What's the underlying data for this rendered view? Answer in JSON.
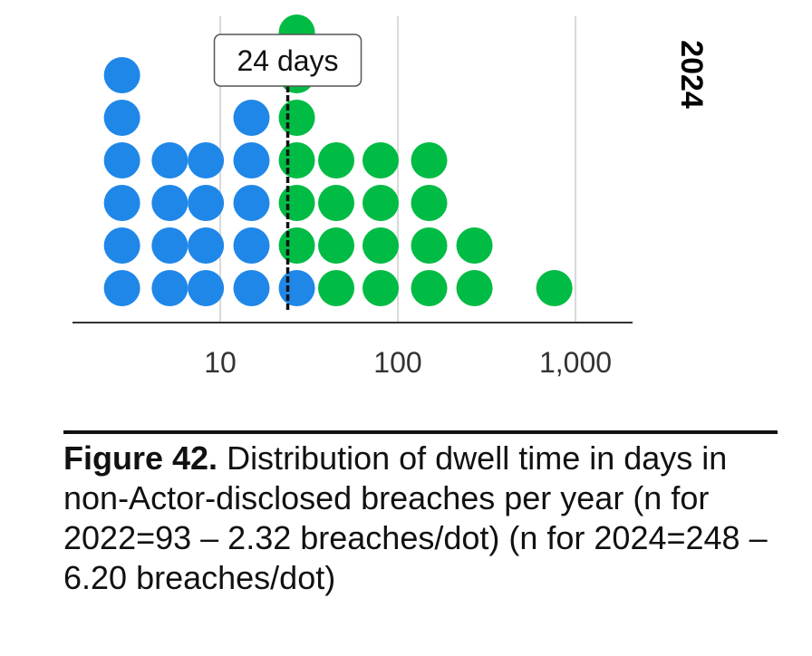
{
  "chart_data": {
    "type": "dot-histogram",
    "x_scale": "log",
    "x_ticks": [
      {
        "value": 10,
        "label": "10"
      },
      {
        "value": 100,
        "label": "100"
      },
      {
        "value": 1000,
        "label": "1,000"
      }
    ],
    "grid": true,
    "panel_label": "2024",
    "median": {
      "value": 24,
      "label": "24 days"
    },
    "columns": [
      {
        "x": 2.8,
        "blue": 6,
        "green": 0
      },
      {
        "x": 5.2,
        "blue": 4,
        "green": 0
      },
      {
        "x": 8.3,
        "blue": 4,
        "green": 0
      },
      {
        "x": 15,
        "blue": 5,
        "green": 0
      },
      {
        "x": 27,
        "blue": 1,
        "green": 6
      },
      {
        "x": 45,
        "blue": 0,
        "green": 4
      },
      {
        "x": 80,
        "blue": 0,
        "green": 4
      },
      {
        "x": 150,
        "blue": 0,
        "green": 4
      },
      {
        "x": 270,
        "blue": 0,
        "green": 2
      },
      {
        "x": 760,
        "blue": 0,
        "green": 1
      }
    ],
    "colors": {
      "below_median": "#1f87e8",
      "above_median": "#00bb44",
      "median_line": "#111111",
      "grid": "#d9d9d9",
      "axis": "#333333"
    }
  },
  "caption": {
    "title": "Figure 42.",
    "text": " Distribution of dwell time in days in non-Actor-disclosed breaches per year (n for 2022=93 – 2.32 breaches/dot) (n for 2024=248 – 6.20 breaches/dot)"
  }
}
